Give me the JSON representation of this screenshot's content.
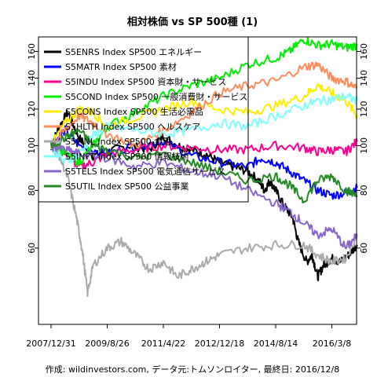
{
  "chart_data": {
    "type": "line",
    "title": "相対株価 vs SP 500種 (1)",
    "caption": "作成: wildinvestors.com, データ元:トムソンロイター, 最終日: 2016/12/8",
    "y_scale": "log",
    "ylim": [
      41,
      172
    ],
    "y_ticks": [
      60,
      80,
      100,
      120,
      140,
      160
    ],
    "x_ticks": [
      "2007/12/31",
      "2009/8/26",
      "2011/4/22",
      "2012/12/18",
      "2014/8/14",
      "2016/3/8"
    ],
    "x_tick_frac": [
      0.0,
      0.2,
      0.4,
      0.6,
      0.8,
      1.0
    ],
    "x_range_end_frac": 1.1,
    "grid": false,
    "legend_position": "top-left",
    "series": [
      {
        "name": "S5ENRS Index SP500 エネルギー",
        "color": "#000000",
        "points": [
          [
            0,
            100
          ],
          [
            0.03,
            110
          ],
          [
            0.06,
            118
          ],
          [
            0.1,
            104
          ],
          [
            0.15,
            95
          ],
          [
            0.2,
            97
          ],
          [
            0.28,
            100
          ],
          [
            0.35,
            98
          ],
          [
            0.4,
            105
          ],
          [
            0.45,
            100
          ],
          [
            0.5,
            98
          ],
          [
            0.55,
            96
          ],
          [
            0.6,
            92
          ],
          [
            0.65,
            90
          ],
          [
            0.7,
            88
          ],
          [
            0.74,
            84
          ],
          [
            0.76,
            80
          ],
          [
            0.78,
            84
          ],
          [
            0.8,
            80
          ],
          [
            0.83,
            74
          ],
          [
            0.86,
            70
          ],
          [
            0.88,
            62
          ],
          [
            0.91,
            56
          ],
          [
            0.93,
            58
          ],
          [
            0.95,
            52
          ],
          [
            0.97,
            55
          ],
          [
            1.0,
            57
          ],
          [
            1.03,
            56
          ],
          [
            1.06,
            58
          ],
          [
            1.09,
            61
          ]
        ]
      },
      {
        "name": "S5MATR Index SP500 素材",
        "color": "#0000ff",
        "points": [
          [
            0,
            100
          ],
          [
            0.05,
            108
          ],
          [
            0.1,
            100
          ],
          [
            0.2,
            96
          ],
          [
            0.3,
            100
          ],
          [
            0.4,
            102
          ],
          [
            0.5,
            95
          ],
          [
            0.6,
            92
          ],
          [
            0.7,
            90
          ],
          [
            0.75,
            94
          ],
          [
            0.8,
            92
          ],
          [
            0.85,
            88
          ],
          [
            0.9,
            84
          ],
          [
            0.95,
            80
          ],
          [
            1.0,
            78
          ],
          [
            1.05,
            79
          ],
          [
            1.09,
            81
          ]
        ]
      },
      {
        "name": "S5INDU Index SP500 資本財・サービス",
        "color": "#ff0090",
        "points": [
          [
            0,
            100
          ],
          [
            0.05,
            96
          ],
          [
            0.1,
            90
          ],
          [
            0.15,
            92
          ],
          [
            0.2,
            96
          ],
          [
            0.3,
            98
          ],
          [
            0.4,
            100
          ],
          [
            0.5,
            99
          ],
          [
            0.6,
            98
          ],
          [
            0.7,
            98
          ],
          [
            0.8,
            100
          ],
          [
            0.9,
            99
          ],
          [
            0.95,
            97
          ],
          [
            1.0,
            98
          ],
          [
            1.05,
            97
          ],
          [
            1.09,
            102
          ]
        ]
      },
      {
        "name": "S5COND Index SP500 一般消費財・サービス",
        "color": "#00ee00",
        "points": [
          [
            0,
            100
          ],
          [
            0.05,
            96
          ],
          [
            0.1,
            92
          ],
          [
            0.15,
            100
          ],
          [
            0.2,
            110
          ],
          [
            0.3,
            118
          ],
          [
            0.4,
            128
          ],
          [
            0.5,
            135
          ],
          [
            0.6,
            140
          ],
          [
            0.7,
            150
          ],
          [
            0.8,
            155
          ],
          [
            0.85,
            160
          ],
          [
            0.9,
            170
          ],
          [
            0.95,
            165
          ],
          [
            1.0,
            166
          ],
          [
            1.05,
            163
          ],
          [
            1.09,
            165
          ]
        ]
      },
      {
        "name": "S5CONS Index SP500 生活必需品",
        "color": "#ffee00",
        "points": [
          [
            0,
            100
          ],
          [
            0.05,
            112
          ],
          [
            0.1,
            120
          ],
          [
            0.15,
            118
          ],
          [
            0.2,
            110
          ],
          [
            0.3,
            115
          ],
          [
            0.4,
            120
          ],
          [
            0.5,
            125
          ],
          [
            0.6,
            120
          ],
          [
            0.7,
            118
          ],
          [
            0.8,
            122
          ],
          [
            0.9,
            128
          ],
          [
            0.95,
            135
          ],
          [
            1.0,
            130
          ],
          [
            1.05,
            125
          ],
          [
            1.09,
            116
          ]
        ]
      },
      {
        "name": "S5HLTH Index SP500 ヘルスケア",
        "color": "#ff8c5a",
        "points": [
          [
            0,
            100
          ],
          [
            0.05,
            108
          ],
          [
            0.1,
            116
          ],
          [
            0.15,
            112
          ],
          [
            0.2,
            106
          ],
          [
            0.3,
            100
          ],
          [
            0.4,
            108
          ],
          [
            0.5,
            118
          ],
          [
            0.6,
            130
          ],
          [
            0.7,
            135
          ],
          [
            0.8,
            138
          ],
          [
            0.9,
            148
          ],
          [
            0.95,
            150
          ],
          [
            1.0,
            140
          ],
          [
            1.05,
            138
          ],
          [
            1.09,
            133
          ]
        ]
      },
      {
        "name": "S5FINL Index SP500 金融",
        "color": "#aaaaaa",
        "points": [
          [
            0,
            100
          ],
          [
            0.03,
            95
          ],
          [
            0.06,
            85
          ],
          [
            0.09,
            70
          ],
          [
            0.11,
            60
          ],
          [
            0.13,
            48
          ],
          [
            0.15,
            55
          ],
          [
            0.2,
            60
          ],
          [
            0.25,
            62
          ],
          [
            0.3,
            58
          ],
          [
            0.35,
            54
          ],
          [
            0.4,
            56
          ],
          [
            0.45,
            52
          ],
          [
            0.5,
            54
          ],
          [
            0.55,
            56
          ],
          [
            0.6,
            58
          ],
          [
            0.7,
            60
          ],
          [
            0.8,
            61
          ],
          [
            0.9,
            61
          ],
          [
            0.95,
            58
          ],
          [
            1.0,
            56
          ],
          [
            1.05,
            57
          ],
          [
            1.09,
            64
          ]
        ]
      },
      {
        "name": "S5INFT Index SP500 情報技術",
        "color": "#7fffff",
        "points": [
          [
            0,
            100
          ],
          [
            0.05,
            92
          ],
          [
            0.1,
            96
          ],
          [
            0.15,
            105
          ],
          [
            0.2,
            110
          ],
          [
            0.3,
            108
          ],
          [
            0.4,
            106
          ],
          [
            0.5,
            108
          ],
          [
            0.6,
            112
          ],
          [
            0.7,
            110
          ],
          [
            0.8,
            116
          ],
          [
            0.9,
            122
          ],
          [
            0.95,
            125
          ],
          [
            1.0,
            126
          ],
          [
            1.05,
            128
          ],
          [
            1.09,
            125
          ]
        ]
      },
      {
        "name": "S5TELS Index SP500 電気通信サービス",
        "color": "#8866cc",
        "points": [
          [
            0,
            100
          ],
          [
            0.05,
            98
          ],
          [
            0.1,
            96
          ],
          [
            0.2,
            94
          ],
          [
            0.3,
            90
          ],
          [
            0.4,
            92
          ],
          [
            0.5,
            88
          ],
          [
            0.6,
            86
          ],
          [
            0.7,
            80
          ],
          [
            0.8,
            75
          ],
          [
            0.85,
            72
          ],
          [
            0.9,
            68
          ],
          [
            0.95,
            64
          ],
          [
            1.0,
            66
          ],
          [
            1.05,
            60
          ],
          [
            1.09,
            64
          ]
        ]
      },
      {
        "name": "S5UTIL Index SP500 公益事業",
        "color": "#228b22",
        "points": [
          [
            0,
            100
          ],
          [
            0.05,
            104
          ],
          [
            0.1,
            108
          ],
          [
            0.15,
            100
          ],
          [
            0.2,
            98
          ],
          [
            0.3,
            94
          ],
          [
            0.4,
            96
          ],
          [
            0.5,
            92
          ],
          [
            0.6,
            88
          ],
          [
            0.7,
            84
          ],
          [
            0.8,
            86
          ],
          [
            0.85,
            82
          ],
          [
            0.9,
            76
          ],
          [
            0.95,
            84
          ],
          [
            1.0,
            86
          ],
          [
            1.05,
            80
          ],
          [
            1.09,
            78
          ]
        ]
      }
    ]
  }
}
